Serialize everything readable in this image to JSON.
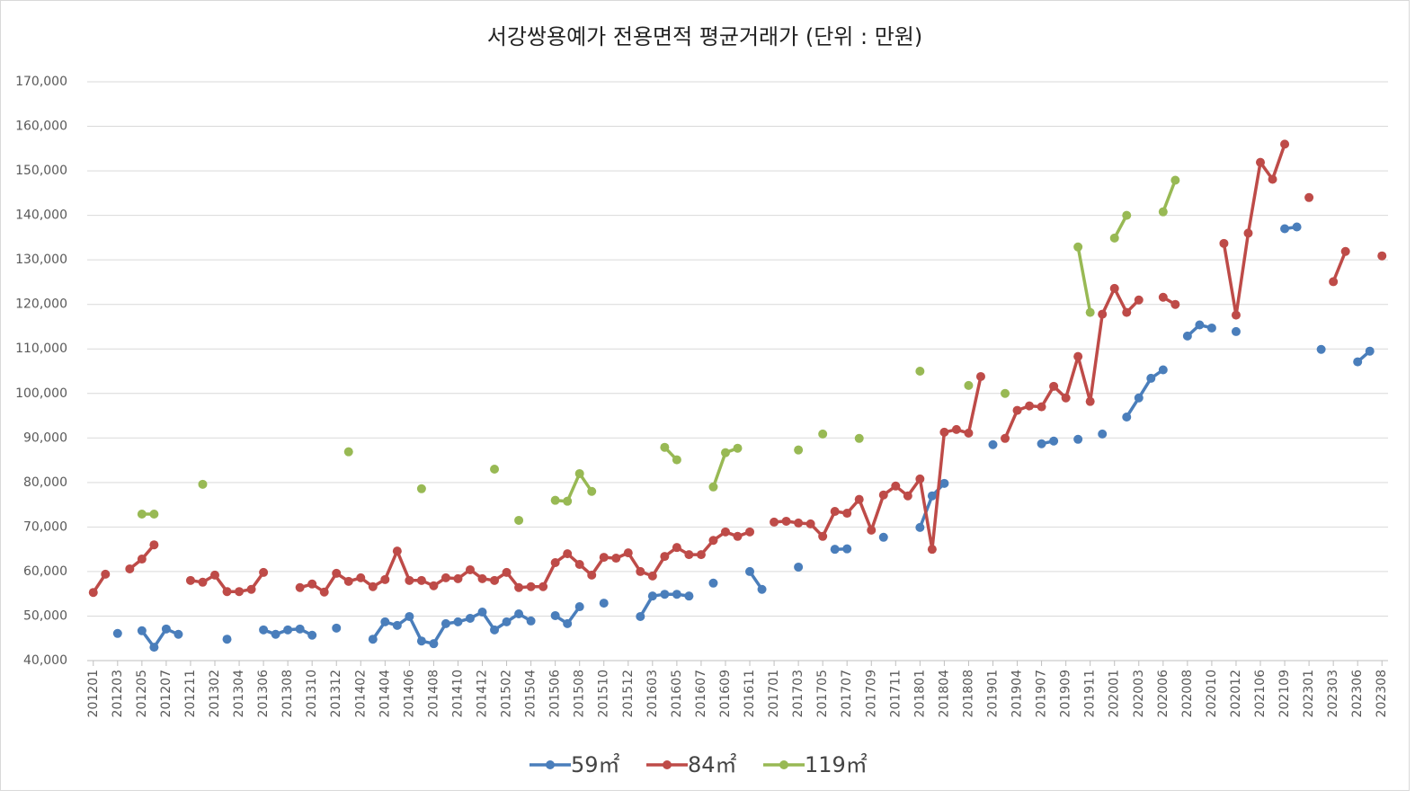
{
  "chart_data": {
    "type": "line",
    "title": "서강쌍용예가 전용면적 평균거래가 (단위 : 만원)",
    "categories": [
      "201201",
      null,
      "201203",
      null,
      "201205",
      null,
      "201207",
      null,
      "201211",
      null,
      "201302",
      null,
      "201304",
      null,
      "201306",
      null,
      "201308",
      null,
      "201310",
      null,
      "201312",
      null,
      "201402",
      null,
      "201404",
      null,
      "201406",
      null,
      "201408",
      null,
      "201410",
      null,
      "201412",
      null,
      "201502",
      null,
      "201504",
      null,
      "201506",
      null,
      "201508",
      null,
      "201510",
      null,
      "201512",
      null,
      "201603",
      null,
      "201605",
      null,
      "201607",
      null,
      "201609",
      null,
      "201611",
      null,
      "201701",
      null,
      "201703",
      null,
      "201705",
      null,
      "201707",
      null,
      "201709",
      null,
      "201711",
      null,
      "201801",
      null,
      "201804",
      null,
      "201808",
      null,
      "201901",
      null,
      "201904",
      null,
      "201907",
      null,
      "201909",
      null,
      "201911",
      null,
      "202001",
      null,
      "202003",
      null,
      "202006",
      null,
      "202008",
      null,
      "202010",
      null,
      "202012",
      null,
      "202106",
      null,
      "202109",
      null,
      "202301",
      null,
      "202303",
      null,
      "202306",
      null,
      "202308"
    ],
    "series": [
      {
        "name": "59㎡",
        "color": "#4a7ebb",
        "values": [
          null,
          null,
          46100,
          null,
          46700,
          43000,
          47100,
          45900,
          null,
          null,
          null,
          44800,
          null,
          null,
          46900,
          45900,
          46900,
          47100,
          45700,
          null,
          47300,
          null,
          null,
          44800,
          48700,
          47900,
          49900,
          44400,
          43800,
          48300,
          48700,
          49500,
          50900,
          46900,
          48700,
          50500,
          48900,
          null,
          50100,
          48300,
          52100,
          null,
          52900,
          null,
          null,
          49900,
          54500,
          54900,
          54900,
          54500,
          null,
          57400,
          null,
          null,
          60000,
          56000,
          null,
          null,
          61000,
          null,
          null,
          65000,
          65100,
          null,
          null,
          67700,
          null,
          null,
          69900,
          77000,
          79800,
          null,
          null,
          null,
          88500,
          null,
          null,
          null,
          88700,
          89300,
          null,
          89700,
          null,
          90900,
          null,
          94700,
          99000,
          103400,
          105300,
          null,
          112900,
          115400,
          114700,
          null,
          113900,
          null,
          null,
          null,
          137000,
          137400,
          null,
          109900,
          null,
          null,
          107100,
          109500,
          null
        ]
      },
      {
        "name": "84㎡",
        "color": "#be4b48",
        "values": [
          55300,
          59400,
          null,
          60600,
          62800,
          66000,
          null,
          null,
          58000,
          57600,
          59200,
          55500,
          55500,
          56000,
          59800,
          null,
          null,
          56400,
          57200,
          55400,
          59600,
          57800,
          58600,
          56600,
          58200,
          64600,
          58000,
          58000,
          56800,
          58600,
          58400,
          60400,
          58400,
          58000,
          59800,
          56400,
          56600,
          56600,
          62000,
          64000,
          61600,
          59200,
          63200,
          63000,
          64200,
          60000,
          59000,
          63400,
          65400,
          63800,
          63800,
          67000,
          68900,
          67900,
          68900,
          null,
          71100,
          71300,
          70900,
          70700,
          67900,
          73500,
          73100,
          76200,
          69300,
          77200,
          79200,
          77000,
          80800,
          65000,
          91300,
          91900,
          91100,
          103800,
          null,
          89900,
          96200,
          97200,
          97000,
          101600,
          99000,
          108300,
          98200,
          117800,
          123600,
          118200,
          121000,
          null,
          121600,
          120000,
          null,
          null,
          null,
          133700,
          117600,
          136000,
          151900,
          148100,
          156000,
          null,
          144000,
          null,
          125100,
          131900,
          null,
          null,
          130900
        ]
      },
      {
        "name": "119㎡",
        "color": "#98b954",
        "values": [
          null,
          null,
          null,
          null,
          72900,
          72900,
          null,
          null,
          null,
          79600,
          null,
          null,
          null,
          null,
          null,
          null,
          null,
          null,
          null,
          null,
          null,
          86900,
          null,
          null,
          null,
          null,
          null,
          78600,
          null,
          null,
          null,
          null,
          null,
          83000,
          null,
          71500,
          null,
          null,
          76000,
          75800,
          82000,
          78000,
          null,
          null,
          null,
          null,
          null,
          87900,
          85100,
          null,
          null,
          79000,
          86700,
          87700,
          null,
          null,
          null,
          null,
          87300,
          null,
          90900,
          null,
          null,
          89900,
          null,
          null,
          null,
          null,
          105000,
          null,
          null,
          null,
          101800,
          null,
          null,
          100000,
          null,
          null,
          null,
          null,
          null,
          132900,
          118200,
          null,
          134900,
          140000,
          null,
          null,
          140800,
          147900,
          null,
          null,
          null,
          null,
          null,
          null,
          null,
          null,
          null,
          null,
          null,
          null,
          null,
          null,
          null,
          null,
          null
        ]
      }
    ],
    "ylim": [
      40000,
      170000
    ],
    "yticks": [
      {
        "value": 40000,
        "label": "40,000"
      },
      {
        "value": 50000,
        "label": "50,000"
      },
      {
        "value": 60000,
        "label": "60,000"
      },
      {
        "value": 70000,
        "label": "70,000"
      },
      {
        "value": 80000,
        "label": "80,000"
      },
      {
        "value": 90000,
        "label": "90,000"
      },
      {
        "value": 100000,
        "label": "100,000"
      },
      {
        "value": 110000,
        "label": "110,000"
      },
      {
        "value": 120000,
        "label": "120,000"
      },
      {
        "value": 130000,
        "label": "130,000"
      },
      {
        "value": 140000,
        "label": "140,000"
      },
      {
        "value": 150000,
        "label": "150,000"
      },
      {
        "value": 160000,
        "label": "160,000"
      },
      {
        "value": 170000,
        "label": "170,000"
      }
    ],
    "grid": true,
    "legend": "bottom"
  }
}
